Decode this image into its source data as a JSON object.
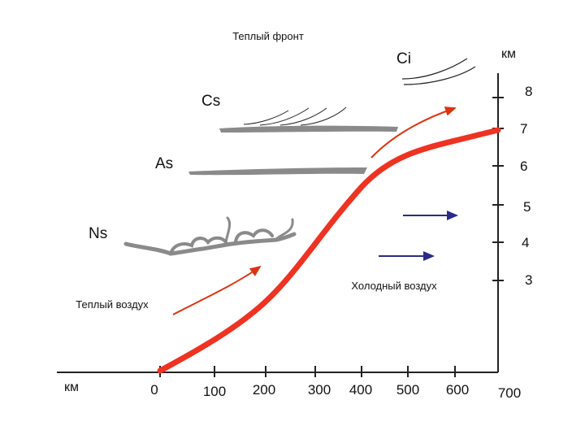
{
  "title": "Теплый фронт",
  "unit_label_top": "км",
  "unit_label_bottom": "км",
  "clouds": {
    "ci": "Ci",
    "cs": "Cs",
    "as": "As",
    "ns": "Ns"
  },
  "air_masses": {
    "warm": "Теплый воздух",
    "cold": "Холодный воздух"
  },
  "x_axis_ticks": [
    "0",
    "100",
    "200",
    "300",
    "400",
    "500",
    "600",
    "700"
  ],
  "y_axis_ticks": [
    "8",
    "7",
    "6",
    "5",
    "4",
    "3"
  ],
  "colors": {
    "front_line": "#ee3322",
    "warm_arrow": "#dd3311",
    "cold_arrow": "#2a2a88",
    "cloud_gray": "#8a8a8a",
    "axis": "#222222"
  }
}
